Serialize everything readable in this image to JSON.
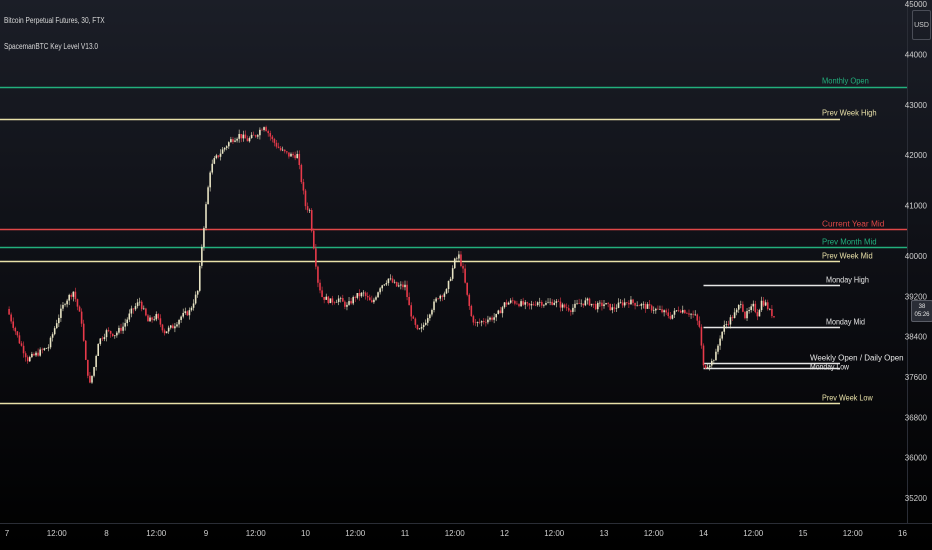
{
  "header": {
    "title": "Bitcoin Perpetual Futures, 30, FTX",
    "indicator": "SpacemanBTC Key Level V13.0"
  },
  "price_scale": {
    "currency_l1": "USD",
    "price_tag_l1": "38",
    "price_tag_l2": "05:26"
  },
  "colors": {
    "bull": "#e8e4c4",
    "bear": "#e83a4a",
    "month": "#22b07d",
    "week": "#e8e0a8",
    "year_mid": "#e04848",
    "monday": "#e6e6e6",
    "text": "#d9d9d9"
  },
  "chart_data": {
    "type": "candlestick",
    "title": "Bitcoin Perpetual Futures, 30, FTX",
    "ylim": [
      35200,
      45000
    ],
    "y_ticks": [
      "45000",
      "44000",
      "43000",
      "42000",
      "41000",
      "40000",
      "39200",
      "38400",
      "37600",
      "36800",
      "36000",
      "35200"
    ],
    "x_ticks": [
      "7",
      "12:00",
      "8",
      "12:00",
      "9",
      "12:00",
      "10",
      "12:00",
      "11",
      "12:00",
      "12",
      "12:00",
      "13",
      "12:00",
      "14",
      "12:00",
      "15",
      "12:00",
      "16"
    ],
    "x_tick_hours": [
      0,
      12,
      24,
      36,
      48,
      60,
      72,
      84,
      96,
      108,
      120,
      132,
      144,
      156,
      168,
      180,
      192,
      204,
      216
    ],
    "x_range_hours": [
      0,
      219
    ],
    "price_path": [
      [
        0,
        38950
      ],
      [
        3,
        38300
      ],
      [
        5,
        37950
      ],
      [
        8,
        38100
      ],
      [
        10,
        38200
      ],
      [
        12,
        38700
      ],
      [
        14,
        39100
      ],
      [
        16,
        39300
      ],
      [
        18,
        38700
      ],
      [
        19,
        37900
      ],
      [
        20,
        37450
      ],
      [
        21,
        37800
      ],
      [
        22,
        38300
      ],
      [
        24,
        38500
      ],
      [
        26,
        38450
      ],
      [
        28,
        38600
      ],
      [
        30,
        38900
      ],
      [
        32,
        39100
      ],
      [
        34,
        38700
      ],
      [
        36,
        38800
      ],
      [
        38,
        38500
      ],
      [
        40,
        38600
      ],
      [
        42,
        38800
      ],
      [
        44,
        38900
      ],
      [
        46,
        39300
      ],
      [
        47,
        40200
      ],
      [
        48,
        41000
      ],
      [
        49,
        41700
      ],
      [
        50,
        41900
      ],
      [
        52,
        42100
      ],
      [
        54,
        42300
      ],
      [
        56,
        42400
      ],
      [
        58,
        42300
      ],
      [
        60,
        42400
      ],
      [
        62,
        42600
      ],
      [
        64,
        42300
      ],
      [
        66,
        42100
      ],
      [
        68,
        42000
      ],
      [
        70,
        42000
      ],
      [
        71,
        41500
      ],
      [
        72,
        41000
      ],
      [
        73,
        40900
      ],
      [
        74,
        40200
      ],
      [
        75,
        39500
      ],
      [
        76,
        39200
      ],
      [
        78,
        39100
      ],
      [
        80,
        39150
      ],
      [
        82,
        39000
      ],
      [
        84,
        39200
      ],
      [
        86,
        39250
      ],
      [
        88,
        39050
      ],
      [
        90,
        39400
      ],
      [
        92,
        39550
      ],
      [
        94,
        39400
      ],
      [
        96,
        39400
      ],
      [
        97,
        39000
      ],
      [
        98,
        38700
      ],
      [
        99,
        38500
      ],
      [
        100,
        38550
      ],
      [
        102,
        38900
      ],
      [
        104,
        39200
      ],
      [
        106,
        39300
      ],
      [
        108,
        39900
      ],
      [
        109,
        40000
      ],
      [
        110,
        39700
      ],
      [
        111,
        39200
      ],
      [
        112,
        38800
      ],
      [
        113,
        38650
      ],
      [
        116,
        38750
      ],
      [
        118,
        38800
      ],
      [
        120,
        39050
      ],
      [
        122,
        39100
      ],
      [
        124,
        39050
      ],
      [
        126,
        39000
      ],
      [
        128,
        39100
      ],
      [
        130,
        39050
      ],
      [
        132,
        39100
      ],
      [
        134,
        39000
      ],
      [
        136,
        38950
      ],
      [
        138,
        39050
      ],
      [
        140,
        39100
      ],
      [
        142,
        39000
      ],
      [
        144,
        39050
      ],
      [
        146,
        38950
      ],
      [
        148,
        39050
      ],
      [
        150,
        39100
      ],
      [
        152,
        39050
      ],
      [
        154,
        39000
      ],
      [
        156,
        38950
      ],
      [
        158,
        38900
      ],
      [
        160,
        38800
      ],
      [
        162,
        38950
      ],
      [
        164,
        38900
      ],
      [
        166,
        38800
      ],
      [
        167,
        38600
      ],
      [
        168,
        37800
      ],
      [
        170,
        37900
      ],
      [
        171,
        38050
      ],
      [
        172,
        38400
      ],
      [
        173,
        38600
      ],
      [
        174,
        38700
      ],
      [
        176,
        38900
      ],
      [
        177,
        39100
      ],
      [
        178,
        38800
      ],
      [
        180,
        39000
      ],
      [
        181,
        38850
      ],
      [
        182,
        39100
      ],
      [
        183,
        39050
      ],
      [
        184,
        38900
      ],
      [
        185,
        38800
      ]
    ],
    "levels": [
      {
        "label": "Monthly Open",
        "value": 43350,
        "from_hour": 0,
        "color": "month",
        "label_dy": -7
      },
      {
        "label": "Prev Week High",
        "value": 42720,
        "from_hour": 0,
        "color": "week",
        "label_dy": -7
      },
      {
        "label": "Current Year Mid",
        "value": 40530,
        "from_hour": 0,
        "color": "year_mid",
        "label_dy": -6
      },
      {
        "label": "Prev Month Mid",
        "value": 40180,
        "from_hour": 0,
        "color": "month",
        "label_dy": -6
      },
      {
        "label": "Prev Week Mid",
        "value": 39900,
        "from_hour": 0,
        "color": "week",
        "label_dy": -6
      },
      {
        "label": "Monday High",
        "value": 39420,
        "from_hour": 168,
        "color": "monday",
        "label_dy": -6
      },
      {
        "label": "Monday Mid",
        "value": 38600,
        "from_hour": 168,
        "color": "monday",
        "label_dy": -6
      },
      {
        "label": "Weekly Open / Daily Open",
        "value": 37880,
        "from_hour": 168,
        "color": "monday",
        "label_dy": -6
      },
      {
        "label": "Monday Low",
        "value": 37780,
        "from_hour": 168,
        "color": "monday",
        "label_dy": -2
      },
      {
        "label": "Prev Week Low",
        "value": 37080,
        "from_hour": 0,
        "color": "week",
        "label_dy": -6
      }
    ]
  }
}
